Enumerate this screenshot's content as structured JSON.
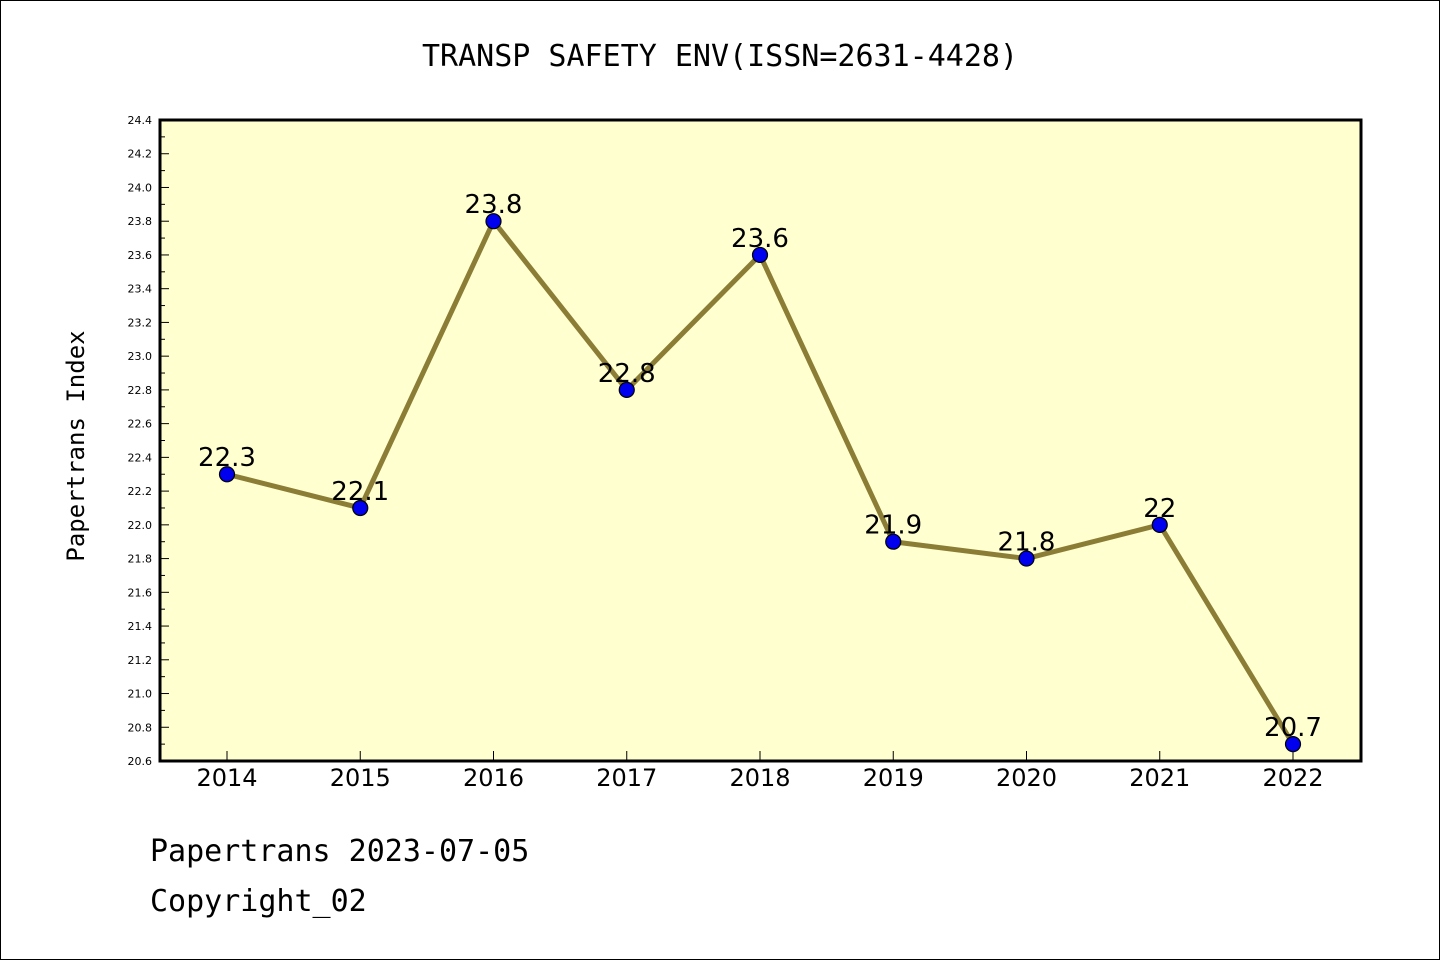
{
  "chart_data": {
    "type": "line",
    "title": "TRANSP SAFETY ENV(ISSN=2631-4428)",
    "ylabel": "Papertrans Index",
    "xlabel": "",
    "categories": [
      "2014",
      "2015",
      "2016",
      "2017",
      "2018",
      "2019",
      "2020",
      "2021",
      "2022"
    ],
    "series": [
      {
        "values": [
          22.3,
          22.1,
          23.8,
          22.8,
          23.6,
          21.9,
          21.8,
          22.0,
          20.7
        ],
        "labels": [
          "22.3",
          "22.1",
          "23.8",
          "22.8",
          "23.6",
          "21.9",
          "21.8",
          "22",
          "20.7"
        ]
      }
    ],
    "ylim": [
      20.6,
      24.4
    ],
    "yticks": [
      "20.6",
      "20.8",
      "21.0",
      "21.2",
      "21.4",
      "21.6",
      "21.8",
      "22.0",
      "22.2",
      "22.4",
      "22.6",
      "22.8",
      "23.0",
      "23.2",
      "23.4",
      "23.6",
      "23.8",
      "24.0",
      "24.2",
      "24.4"
    ],
    "grid": false,
    "colors": {
      "plot_background": "#ffffd0",
      "line": "#8b7d35",
      "marker": "#0000ee"
    }
  },
  "footer": {
    "line1": "Papertrans 2023-07-05",
    "line2": "Copyright_02"
  }
}
